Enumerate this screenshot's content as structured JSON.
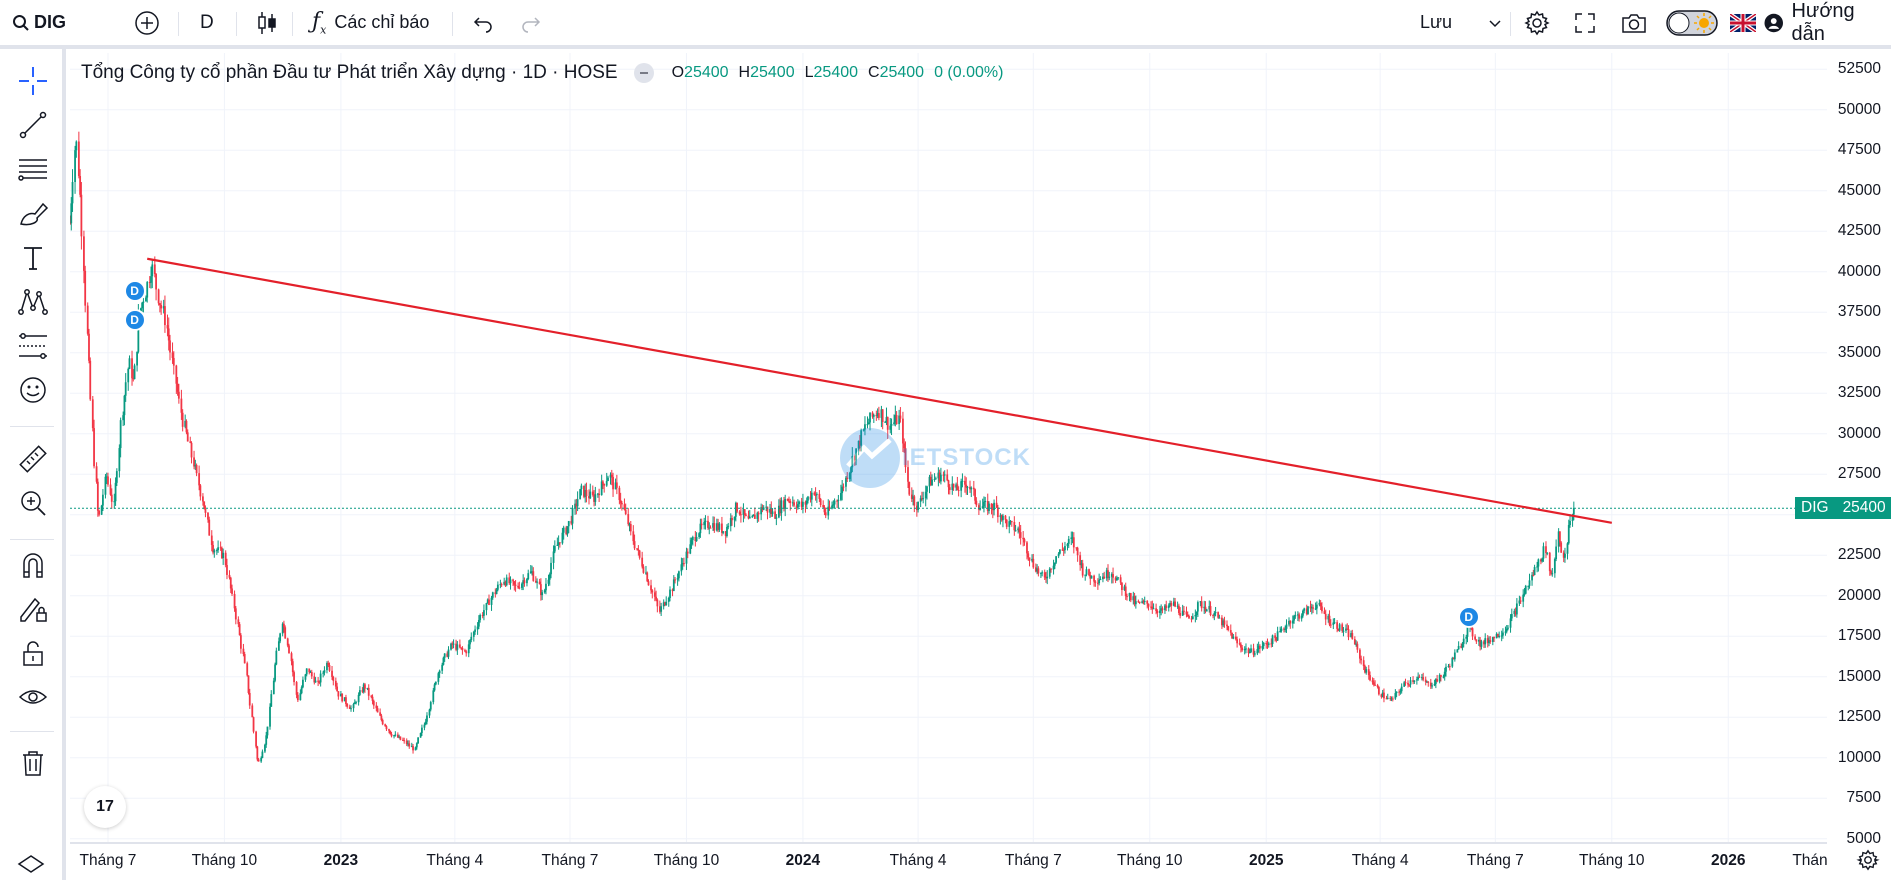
{
  "topbar": {
    "symbol": "DIG",
    "interval": "D",
    "indicators_label": "Các chỉ báo",
    "save_label": "Lưu",
    "guide_label": "Hướng dẫn"
  },
  "legend": {
    "title": "Tổng Công ty cổ phần Đầu tư Phát triển Xây dựng · 1D · HOSE",
    "o_key": "O",
    "o": "25400",
    "h_key": "H",
    "h": "25400",
    "l_key": "L",
    "l": "25400",
    "c_key": "C",
    "c": "25400",
    "change": "0 (0.00%)"
  },
  "watermark": {
    "text": "IETSTOCK"
  },
  "price_label": {
    "symbol": "DIG",
    "value": "25400"
  },
  "event_marker": {
    "letter": "D"
  },
  "tv_logo": "17",
  "colors": {
    "up": "#089981",
    "down": "#f23645",
    "trendline": "#e3202a",
    "accent": "#1e88e5"
  },
  "chart_data": {
    "type": "candlestick",
    "symbol": "DIG",
    "y_ticks": [
      52500,
      50000,
      47500,
      45000,
      42500,
      40000,
      37500,
      35000,
      32500,
      30000,
      27500,
      25000,
      22500,
      20000,
      17500,
      15000,
      12500,
      10000,
      7500,
      5000
    ],
    "ylim": [
      4800,
      53500
    ],
    "x_ticks": [
      {
        "label": "Tháng 7",
        "year": false
      },
      {
        "label": "Tháng 10",
        "year": false
      },
      {
        "label": "2023",
        "year": true
      },
      {
        "label": "Tháng 4",
        "year": false
      },
      {
        "label": "Tháng 7",
        "year": false
      },
      {
        "label": "Tháng 10",
        "year": false
      },
      {
        "label": "2024",
        "year": true
      },
      {
        "label": "Tháng 4",
        "year": false
      },
      {
        "label": "Tháng 7",
        "year": false
      },
      {
        "label": "Tháng 10",
        "year": false
      },
      {
        "label": "2025",
        "year": true
      },
      {
        "label": "Tháng 4",
        "year": false
      },
      {
        "label": "Tháng 7",
        "year": false
      },
      {
        "label": "Tháng 10",
        "year": false
      },
      {
        "label": "2026",
        "year": true
      },
      {
        "label": "Thán",
        "year": false
      }
    ],
    "price_path": [
      [
        "2022-06-01",
        43000
      ],
      [
        "2022-06-06",
        48500
      ],
      [
        "2022-06-10",
        44000
      ],
      [
        "2022-06-15",
        36000
      ],
      [
        "2022-06-20",
        29000
      ],
      [
        "2022-06-24",
        24500
      ],
      [
        "2022-06-30",
        27500
      ],
      [
        "2022-07-06",
        25500
      ],
      [
        "2022-07-12",
        31000
      ],
      [
        "2022-07-18",
        34500
      ],
      [
        "2022-07-22",
        33000
      ],
      [
        "2022-07-26",
        37500
      ],
      [
        "2022-08-01",
        39000
      ],
      [
        "2022-08-05",
        40500
      ],
      [
        "2022-08-10",
        38500
      ],
      [
        "2022-08-16",
        37000
      ],
      [
        "2022-08-22",
        34000
      ],
      [
        "2022-08-29",
        31000
      ],
      [
        "2022-09-06",
        28500
      ],
      [
        "2022-09-14",
        26000
      ],
      [
        "2022-09-22",
        23000
      ],
      [
        "2022-10-01",
        22500
      ],
      [
        "2022-10-10",
        19000
      ],
      [
        "2022-10-18",
        15500
      ],
      [
        "2022-10-24",
        12000
      ],
      [
        "2022-10-28",
        9500
      ],
      [
        "2022-11-04",
        11500
      ],
      [
        "2022-11-10",
        15500
      ],
      [
        "2022-11-16",
        18500
      ],
      [
        "2022-11-22",
        16500
      ],
      [
        "2022-11-28",
        13500
      ],
      [
        "2022-12-06",
        15500
      ],
      [
        "2022-12-14",
        14500
      ],
      [
        "2022-12-22",
        16000
      ],
      [
        "2022-12-30",
        14000
      ],
      [
        "2023-01-10",
        13000
      ],
      [
        "2023-01-20",
        14500
      ],
      [
        "2023-02-01",
        12500
      ],
      [
        "2023-02-10",
        11500
      ],
      [
        "2023-02-20",
        11000
      ],
      [
        "2023-03-01",
        10500
      ],
      [
        "2023-03-10",
        12500
      ],
      [
        "2023-03-20",
        15500
      ],
      [
        "2023-03-30",
        17000
      ],
      [
        "2023-04-10",
        16500
      ],
      [
        "2023-04-20",
        18500
      ],
      [
        "2023-05-01",
        20000
      ],
      [
        "2023-05-10",
        21000
      ],
      [
        "2023-05-20",
        20500
      ],
      [
        "2023-06-01",
        21500
      ],
      [
        "2023-06-10",
        20000
      ],
      [
        "2023-06-20",
        23000
      ],
      [
        "2023-07-01",
        24500
      ],
      [
        "2023-07-10",
        26500
      ],
      [
        "2023-07-20",
        26000
      ],
      [
        "2023-08-01",
        27500
      ],
      [
        "2023-08-10",
        26000
      ],
      [
        "2023-08-20",
        23500
      ],
      [
        "2023-09-01",
        21000
      ],
      [
        "2023-09-10",
        19000
      ],
      [
        "2023-09-20",
        20500
      ],
      [
        "2023-10-01",
        22500
      ],
      [
        "2023-10-10",
        24000
      ],
      [
        "2023-10-20",
        24500
      ],
      [
        "2023-11-01",
        24000
      ],
      [
        "2023-11-10",
        25500
      ],
      [
        "2023-11-20",
        24500
      ],
      [
        "2023-12-01",
        25500
      ],
      [
        "2023-12-10",
        25000
      ],
      [
        "2023-12-20",
        26000
      ],
      [
        "2024-01-01",
        25500
      ],
      [
        "2024-01-10",
        26500
      ],
      [
        "2024-01-20",
        25000
      ],
      [
        "2024-02-01",
        26500
      ],
      [
        "2024-02-10",
        28500
      ],
      [
        "2024-02-20",
        30500
      ],
      [
        "2024-03-01",
        31500
      ],
      [
        "2024-03-10",
        30500
      ],
      [
        "2024-03-18",
        31000
      ],
      [
        "2024-03-25",
        26500
      ],
      [
        "2024-04-01",
        25500
      ],
      [
        "2024-04-10",
        27000
      ],
      [
        "2024-04-20",
        27500
      ],
      [
        "2024-05-01",
        26500
      ],
      [
        "2024-05-10",
        27000
      ],
      [
        "2024-05-20",
        25500
      ],
      [
        "2024-06-01",
        25500
      ],
      [
        "2024-06-10",
        24500
      ],
      [
        "2024-06-20",
        24000
      ],
      [
        "2024-07-01",
        22000
      ],
      [
        "2024-07-10",
        21000
      ],
      [
        "2024-07-20",
        22500
      ],
      [
        "2024-08-01",
        23500
      ],
      [
        "2024-08-10",
        21500
      ],
      [
        "2024-08-20",
        21000
      ],
      [
        "2024-09-01",
        21500
      ],
      [
        "2024-09-10",
        20500
      ],
      [
        "2024-09-20",
        19500
      ],
      [
        "2024-10-01",
        19500
      ],
      [
        "2024-10-10",
        19000
      ],
      [
        "2024-10-20",
        19500
      ],
      [
        "2024-11-01",
        18500
      ],
      [
        "2024-11-10",
        19500
      ],
      [
        "2024-11-20",
        19000
      ],
      [
        "2024-12-01",
        18000
      ],
      [
        "2024-12-10",
        17000
      ],
      [
        "2024-12-20",
        16500
      ],
      [
        "2025-01-01",
        17000
      ],
      [
        "2025-01-10",
        17500
      ],
      [
        "2025-01-20",
        18500
      ],
      [
        "2025-02-01",
        19000
      ],
      [
        "2025-02-10",
        19500
      ],
      [
        "2025-02-20",
        18500
      ],
      [
        "2025-03-01",
        18000
      ],
      [
        "2025-03-10",
        17500
      ],
      [
        "2025-03-20",
        15500
      ],
      [
        "2025-04-01",
        14000
      ],
      [
        "2025-04-10",
        13500
      ],
      [
        "2025-04-20",
        14500
      ],
      [
        "2025-05-01",
        15000
      ],
      [
        "2025-05-10",
        14500
      ],
      [
        "2025-05-20",
        15000
      ],
      [
        "2025-06-01",
        16500
      ],
      [
        "2025-06-10",
        18000
      ],
      [
        "2025-06-20",
        17000
      ],
      [
        "2025-07-01",
        17500
      ],
      [
        "2025-07-10",
        18000
      ],
      [
        "2025-07-20",
        19500
      ],
      [
        "2025-08-01",
        21500
      ],
      [
        "2025-08-10",
        23000
      ],
      [
        "2025-08-15",
        21000
      ],
      [
        "2025-08-20",
        24000
      ],
      [
        "2025-08-25",
        22000
      ],
      [
        "2025-08-29",
        24500
      ],
      [
        "2025-09-02",
        25400
      ]
    ],
    "trendline": {
      "start": [
        "2022-08-01",
        40800
      ],
      "end": [
        "2025-10-01",
        24500
      ]
    },
    "last_price": 25400,
    "event_markers": [
      {
        "date": "2022-07-22",
        "price": 38800
      },
      {
        "date": "2022-07-22",
        "price": 37000
      },
      {
        "date": "2025-06-10",
        "price": 18700
      }
    ]
  }
}
